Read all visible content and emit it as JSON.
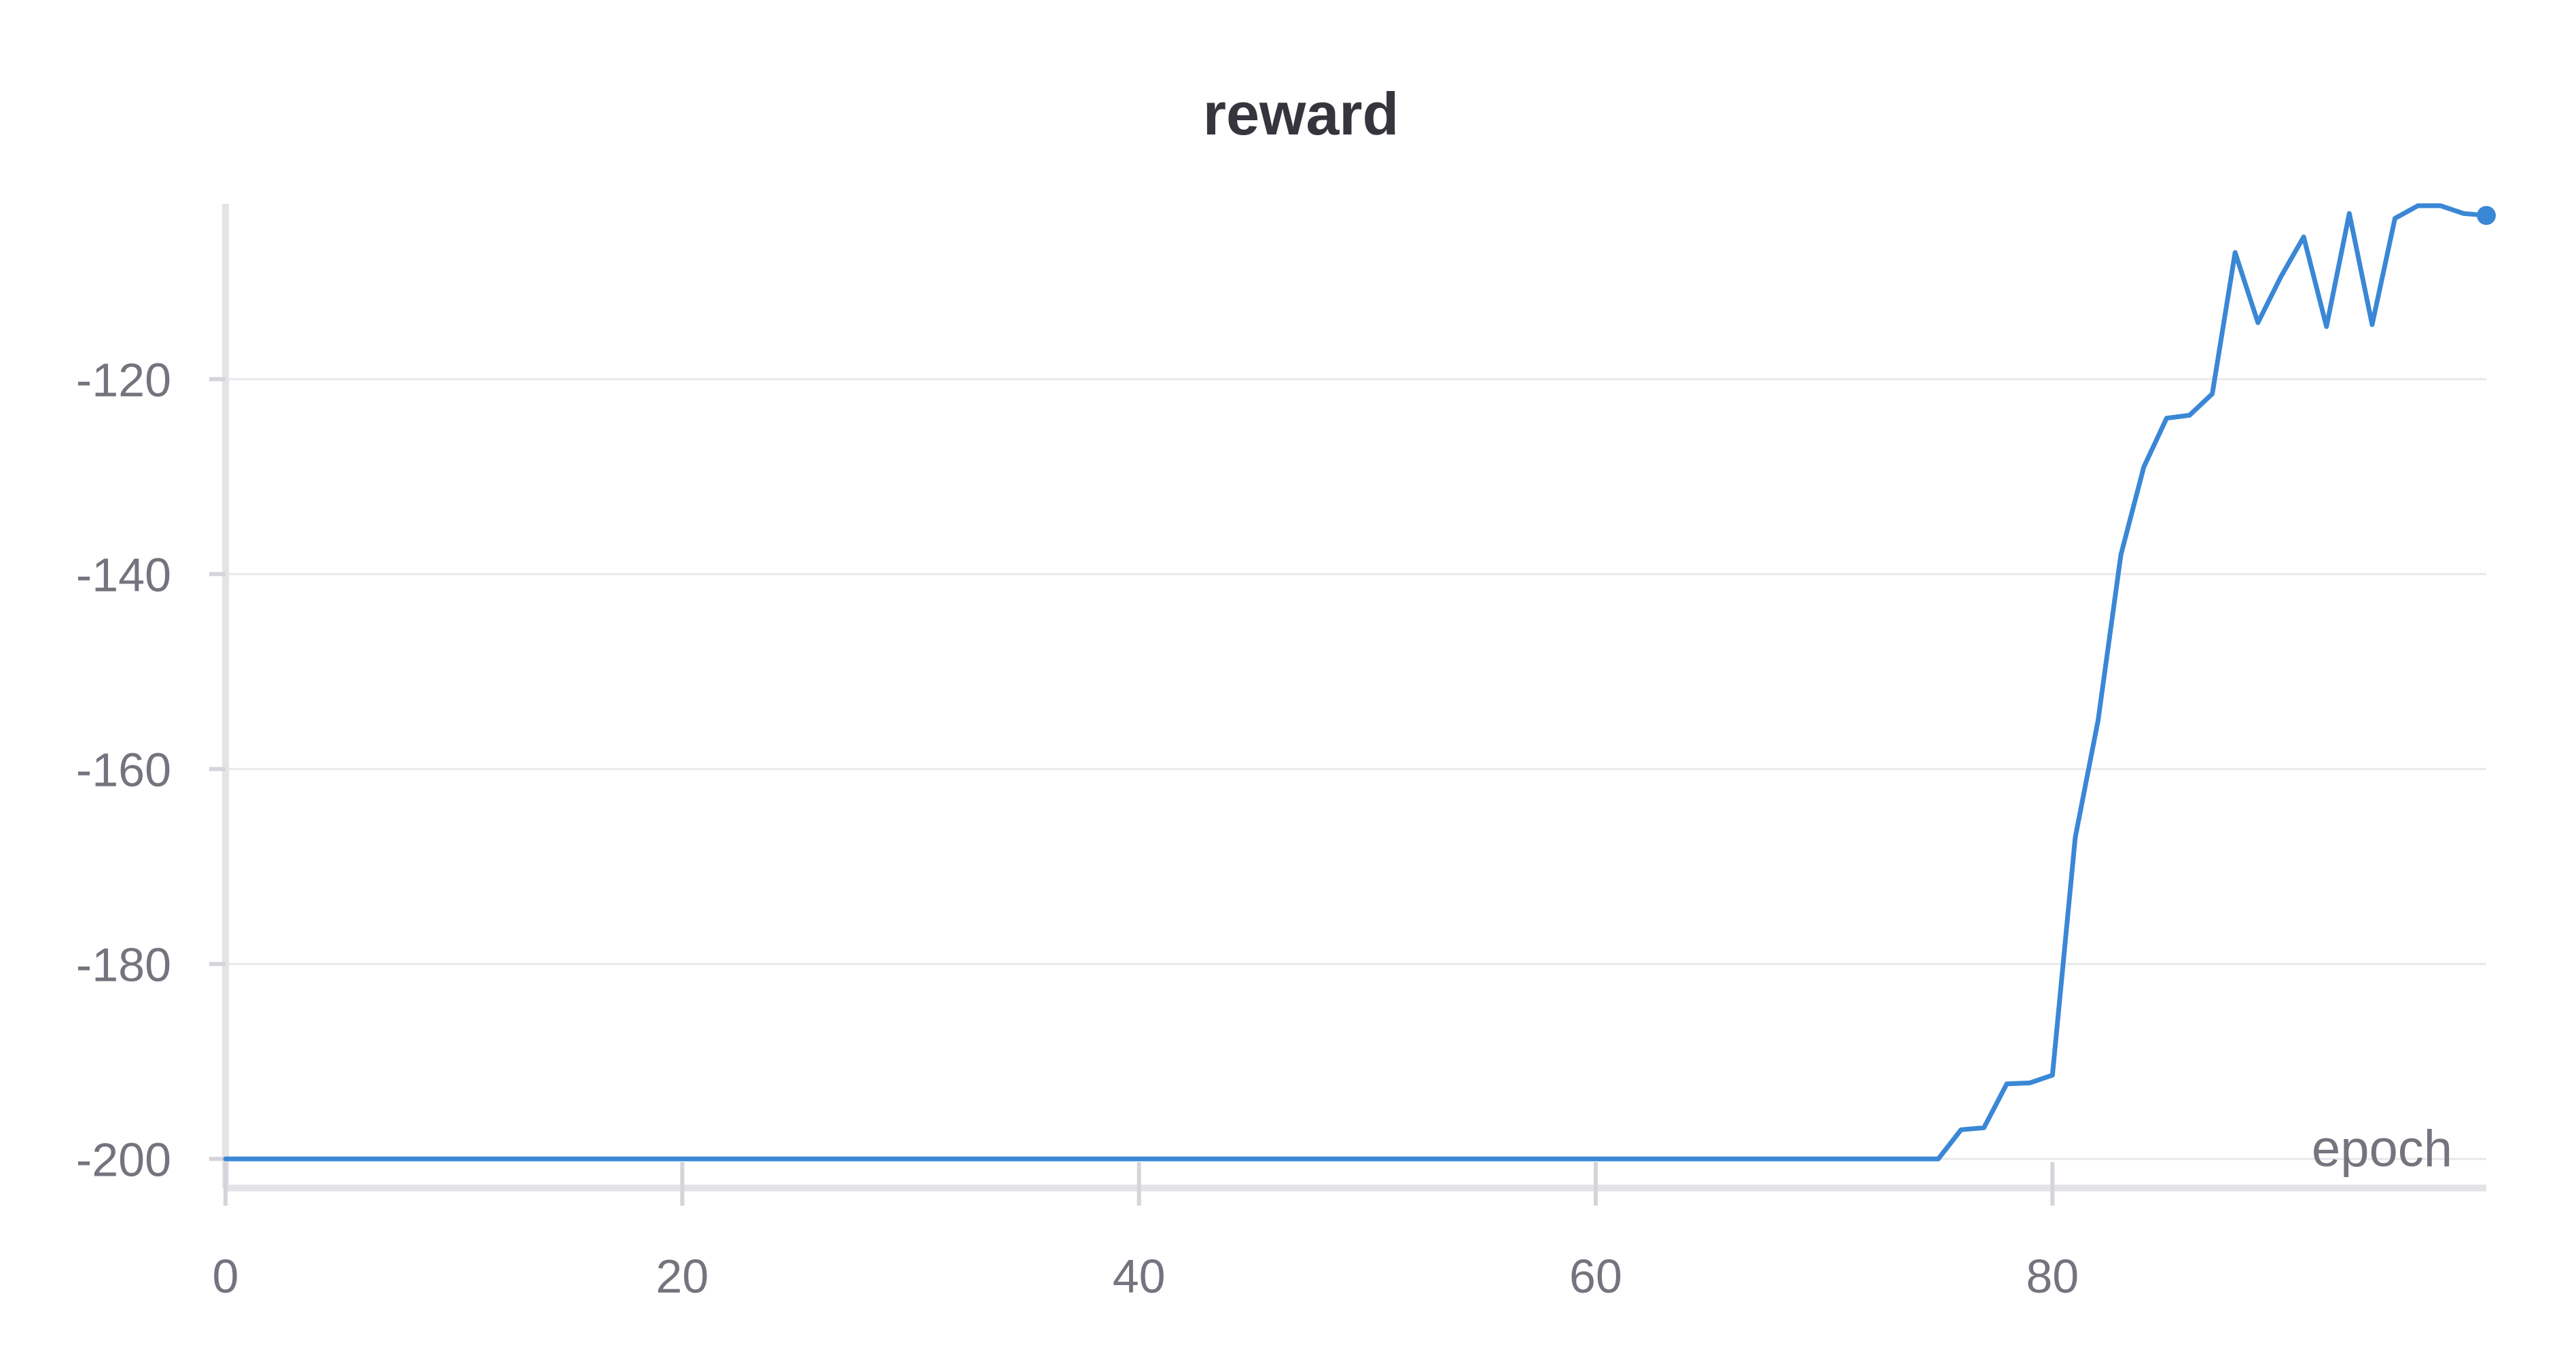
{
  "chart_data": {
    "type": "line",
    "title": "reward",
    "xlabel": "epoch",
    "ylabel": "",
    "xlim": [
      0,
      99
    ],
    "ylim": [
      -202,
      -102
    ],
    "x_ticks": [
      0,
      20,
      40,
      60,
      80
    ],
    "x_tick_labels": [
      "0",
      "20",
      "40",
      "60",
      "80"
    ],
    "y_ticks": [
      -120,
      -140,
      -160,
      -180,
      -200
    ],
    "y_tick_labels": [
      "-120",
      "-140",
      "-160",
      "-180",
      "-200"
    ],
    "grid": true,
    "legend": "none",
    "colors": {
      "series": "#3a87d6",
      "grid": "#e8e8ec",
      "axis": "#e3e3e8",
      "text": "#74747e",
      "title": "#35353d"
    },
    "series": [
      {
        "x": [
          0,
          1,
          2,
          3,
          4,
          5,
          6,
          7,
          8,
          9,
          10,
          11,
          12,
          13,
          14,
          15,
          16,
          17,
          18,
          19,
          20,
          21,
          22,
          23,
          24,
          25,
          26,
          27,
          28,
          29,
          30,
          31,
          32,
          33,
          34,
          35,
          36,
          37,
          38,
          39,
          40,
          41,
          42,
          43,
          44,
          45,
          46,
          47,
          48,
          49,
          50,
          51,
          52,
          53,
          54,
          55,
          56,
          57,
          58,
          59,
          60,
          61,
          62,
          63,
          64,
          65,
          66,
          67,
          68,
          69,
          70,
          71,
          72,
          73,
          74,
          75,
          76,
          77,
          78,
          79,
          80,
          81,
          82,
          83,
          84,
          85,
          86,
          87,
          88,
          89,
          90,
          91,
          92,
          93,
          94,
          95,
          96,
          97,
          98,
          99
        ],
        "values": [
          -200,
          -200,
          -200,
          -200,
          -200,
          -200,
          -200,
          -200,
          -200,
          -200,
          -200,
          -200,
          -200,
          -200,
          -200,
          -200,
          -200,
          -200,
          -200,
          -200,
          -200,
          -200,
          -200,
          -200,
          -200,
          -200,
          -200,
          -200,
          -200,
          -200,
          -200,
          -200,
          -200,
          -200,
          -200,
          -200,
          -200,
          -200,
          -200,
          -200,
          -200,
          -200,
          -200,
          -200,
          -200,
          -200,
          -200,
          -200,
          -200,
          -200,
          -200,
          -200,
          -200,
          -200,
          -200,
          -200,
          -200,
          -200,
          -200,
          -200,
          -200,
          -200,
          -200,
          -200,
          -200,
          -200,
          -200,
          -200,
          -200,
          -200,
          -200,
          -200,
          -200,
          -200,
          -200,
          -200,
          -197,
          -196.8,
          -192.3,
          -192.2,
          -191.4,
          -167,
          -155,
          -138,
          -129,
          -124,
          -123.7,
          -121.5,
          -107,
          -114.2,
          -109.5,
          -105.4,
          -114.6,
          -103,
          -114.4,
          -103.5,
          -102.2,
          -102.2,
          -103,
          -103.2
        ]
      }
    ]
  }
}
